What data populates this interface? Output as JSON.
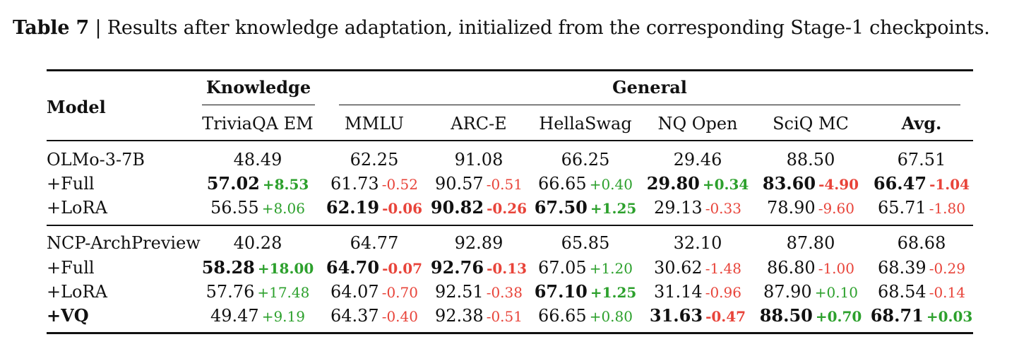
{
  "caption": {
    "label": "Table 7",
    "separator": "|",
    "text": "Results after knowledge adaptation, initialized from the corresponding Stage-1 checkpoints."
  },
  "header": {
    "model": "Model",
    "group_knowledge": "Knowledge",
    "group_general": "General",
    "columns": [
      "TriviaQA EM",
      "MMLU",
      "ARC-E",
      "HellaSwag",
      "NQ Open",
      "SciQ MC",
      "Avg."
    ]
  },
  "rows": [
    {
      "model": "OLMo-3-7B",
      "bold_model": false,
      "cells": [
        {
          "v": "48.49"
        },
        {
          "v": "62.25"
        },
        {
          "v": "91.08"
        },
        {
          "v": "66.25"
        },
        {
          "v": "29.46"
        },
        {
          "v": "88.50"
        },
        {
          "v": "67.51"
        }
      ]
    },
    {
      "model": "+Full",
      "bold_model": false,
      "cells": [
        {
          "v": "57.02",
          "b": true,
          "d": "+8.53",
          "s": "pos",
          "db": true
        },
        {
          "v": "61.73",
          "d": "-0.52",
          "s": "neg"
        },
        {
          "v": "90.57",
          "d": "-0.51",
          "s": "neg"
        },
        {
          "v": "66.65",
          "d": "+0.40",
          "s": "pos"
        },
        {
          "v": "29.80",
          "b": true,
          "d": "+0.34",
          "s": "pos",
          "db": true
        },
        {
          "v": "83.60",
          "b": true,
          "d": "-4.90",
          "s": "neg",
          "db": true
        },
        {
          "v": "66.47",
          "b": true,
          "d": "-1.04",
          "s": "neg",
          "db": true
        }
      ]
    },
    {
      "model": "+LoRA",
      "bold_model": false,
      "cells": [
        {
          "v": "56.55",
          "d": "+8.06",
          "s": "pos"
        },
        {
          "v": "62.19",
          "b": true,
          "d": "-0.06",
          "s": "neg",
          "db": true
        },
        {
          "v": "90.82",
          "b": true,
          "d": "-0.26",
          "s": "neg",
          "db": true
        },
        {
          "v": "67.50",
          "b": true,
          "d": "+1.25",
          "s": "pos",
          "db": true
        },
        {
          "v": "29.13",
          "d": "-0.33",
          "s": "neg"
        },
        {
          "v": "78.90",
          "d": "-9.60",
          "s": "neg"
        },
        {
          "v": "65.71",
          "d": "-1.80",
          "s": "neg"
        }
      ]
    },
    {
      "model": "NCP-ArchPreview",
      "bold_model": false,
      "cells": [
        {
          "v": "40.28"
        },
        {
          "v": "64.77"
        },
        {
          "v": "92.89"
        },
        {
          "v": "65.85"
        },
        {
          "v": "32.10"
        },
        {
          "v": "87.80"
        },
        {
          "v": "68.68"
        }
      ]
    },
    {
      "model": "+Full",
      "bold_model": false,
      "cells": [
        {
          "v": "58.28",
          "b": true,
          "d": "+18.00",
          "s": "pos",
          "db": true
        },
        {
          "v": "64.70",
          "b": true,
          "d": "-0.07",
          "s": "neg",
          "db": true
        },
        {
          "v": "92.76",
          "b": true,
          "d": "-0.13",
          "s": "neg",
          "db": true
        },
        {
          "v": "67.05",
          "d": "+1.20",
          "s": "pos"
        },
        {
          "v": "30.62",
          "d": "-1.48",
          "s": "neg"
        },
        {
          "v": "86.80",
          "d": "-1.00",
          "s": "neg"
        },
        {
          "v": "68.39",
          "d": "-0.29",
          "s": "neg"
        }
      ]
    },
    {
      "model": "+LoRA",
      "bold_model": false,
      "cells": [
        {
          "v": "57.76",
          "d": "+17.48",
          "s": "pos"
        },
        {
          "v": "64.07",
          "d": "-0.70",
          "s": "neg"
        },
        {
          "v": "92.51",
          "d": "-0.38",
          "s": "neg"
        },
        {
          "v": "67.10",
          "b": true,
          "d": "+1.25",
          "s": "pos",
          "db": true
        },
        {
          "v": "31.14",
          "d": "-0.96",
          "s": "neg"
        },
        {
          "v": "87.90",
          "d": "+0.10",
          "s": "pos"
        },
        {
          "v": "68.54",
          "d": "-0.14",
          "s": "neg"
        }
      ]
    },
    {
      "model": "+VQ",
      "bold_model": true,
      "cells": [
        {
          "v": "49.47",
          "d": "+9.19",
          "s": "pos"
        },
        {
          "v": "64.37",
          "d": "-0.40",
          "s": "neg"
        },
        {
          "v": "92.38",
          "d": "-0.51",
          "s": "neg"
        },
        {
          "v": "66.65",
          "d": "+0.80",
          "s": "pos"
        },
        {
          "v": "31.63",
          "b": true,
          "d": "-0.47",
          "s": "neg",
          "db": true
        },
        {
          "v": "88.50",
          "b": true,
          "d": "+0.70",
          "s": "pos",
          "db": true
        },
        {
          "v": "68.71",
          "b": true,
          "d": "+0.03",
          "s": "pos",
          "db": true
        }
      ]
    }
  ],
  "colors": {
    "positive": "#2ca02c",
    "negative": "#e8443a",
    "text": "#111111"
  }
}
